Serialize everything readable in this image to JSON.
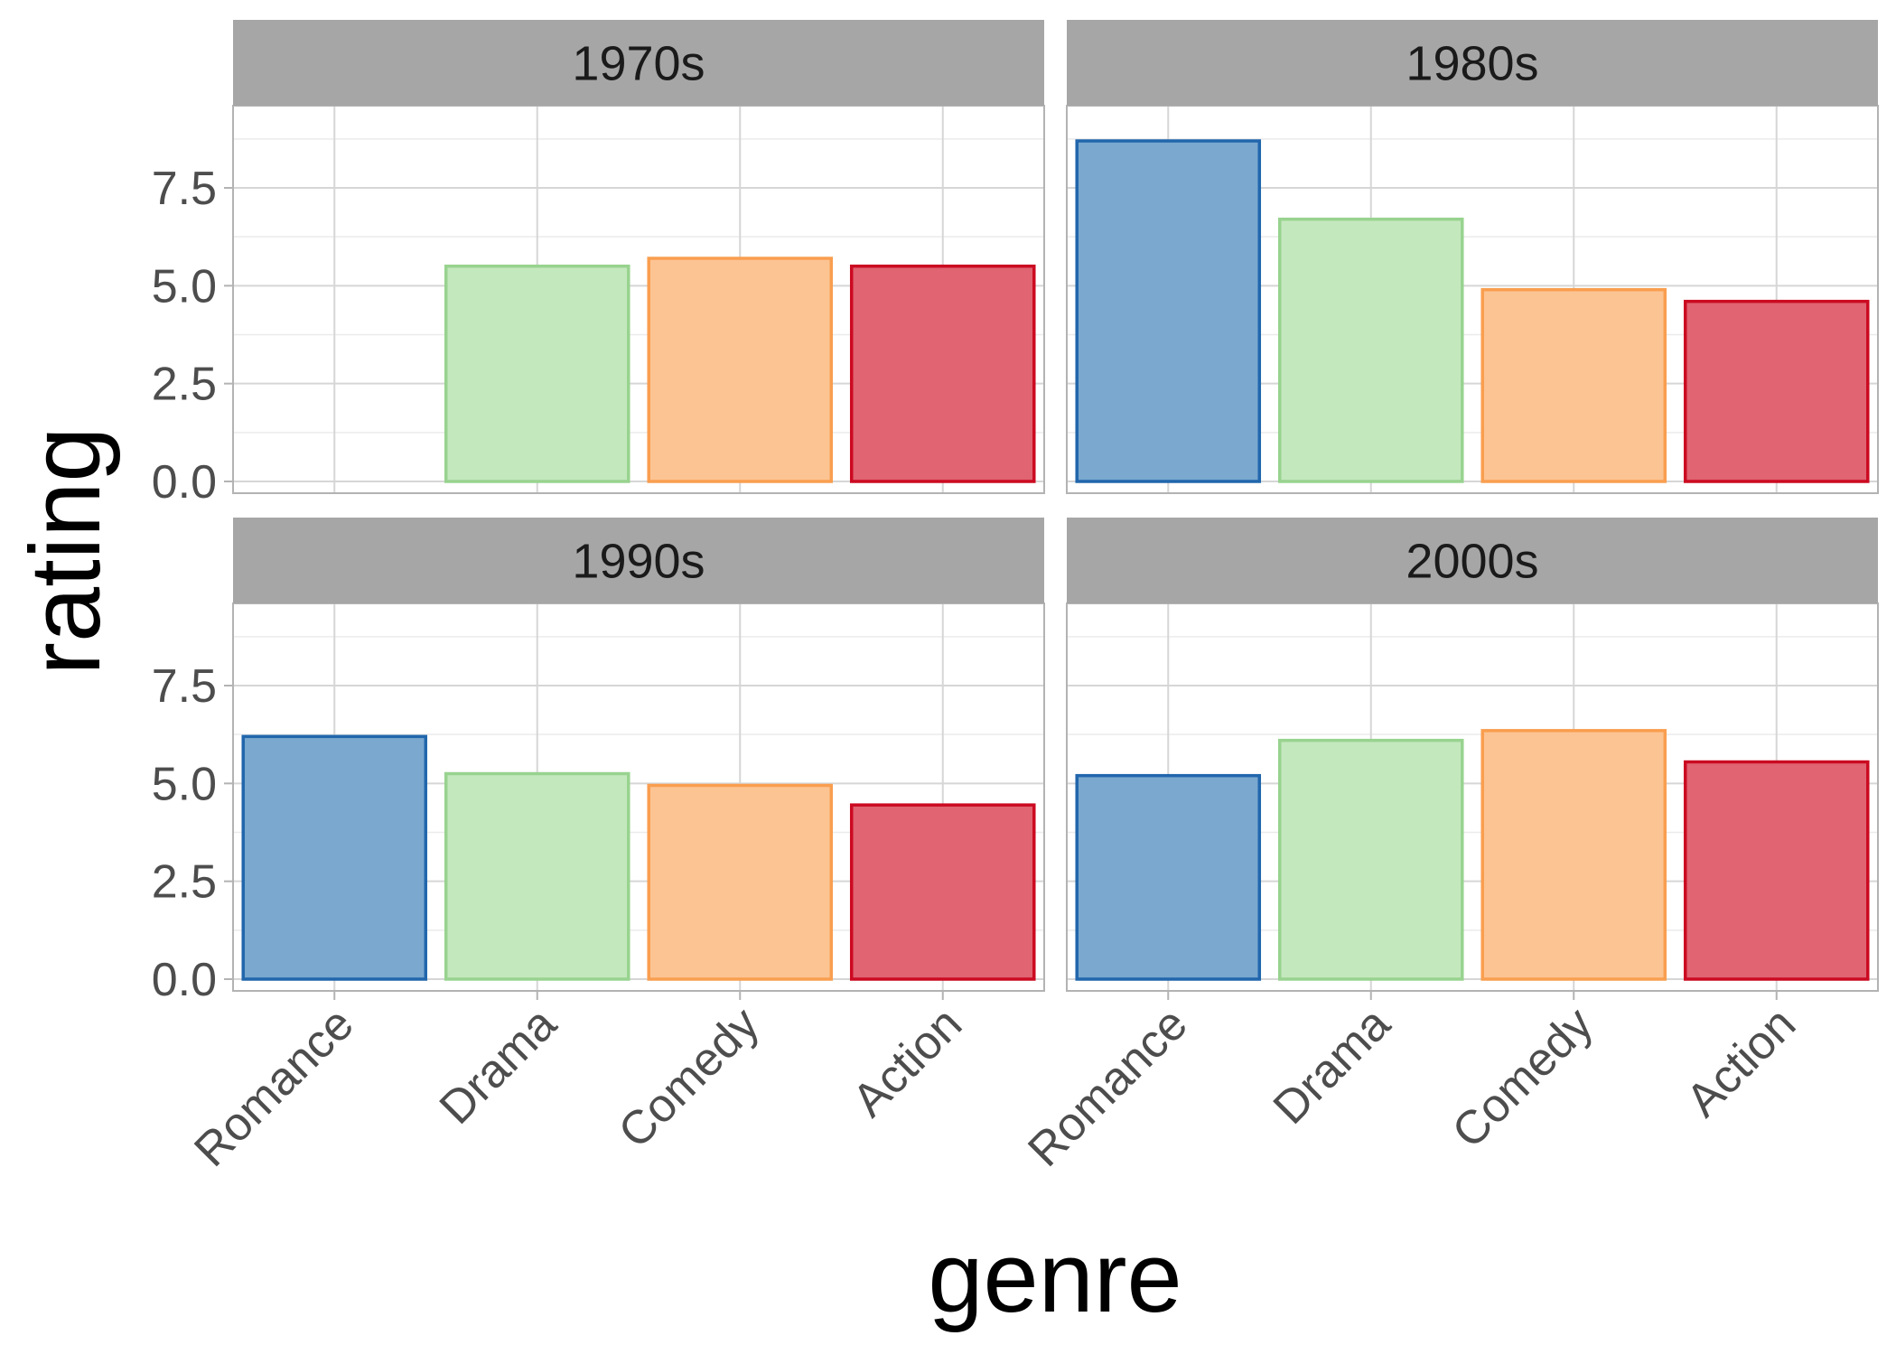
{
  "chart_data": {
    "type": "bar",
    "facet_layout": "2x2",
    "xlabel": "genre",
    "ylabel": "rating",
    "categories": [
      "Romance",
      "Drama",
      "Comedy",
      "Action"
    ],
    "ylim": [
      -0.3,
      9.6
    ],
    "yticks": [
      0.0,
      2.5,
      5.0,
      7.5
    ],
    "ytick_labels": [
      "0.0",
      "2.5",
      "5.0",
      "7.5"
    ],
    "grid": true,
    "legend": "none",
    "colors": {
      "Romance": {
        "fill": "#7AA8CE",
        "stroke": "#2166AC"
      },
      "Drama": {
        "fill": "#C4E8BD",
        "stroke": "#98D38F"
      },
      "Comedy": {
        "fill": "#FCC493",
        "stroke": "#F99E4F"
      },
      "Action": {
        "fill": "#E06472",
        "stroke": "#CB0A21"
      }
    },
    "facets": [
      {
        "label": "1970s",
        "values": [
          null,
          5.5,
          5.7,
          5.5
        ]
      },
      {
        "label": "1980s",
        "values": [
          8.7,
          6.7,
          4.9,
          4.6
        ]
      },
      {
        "label": "1990s",
        "values": [
          6.2,
          5.25,
          4.95,
          4.45
        ]
      },
      {
        "label": "2000s",
        "values": [
          5.2,
          6.1,
          6.35,
          5.55
        ]
      }
    ]
  }
}
